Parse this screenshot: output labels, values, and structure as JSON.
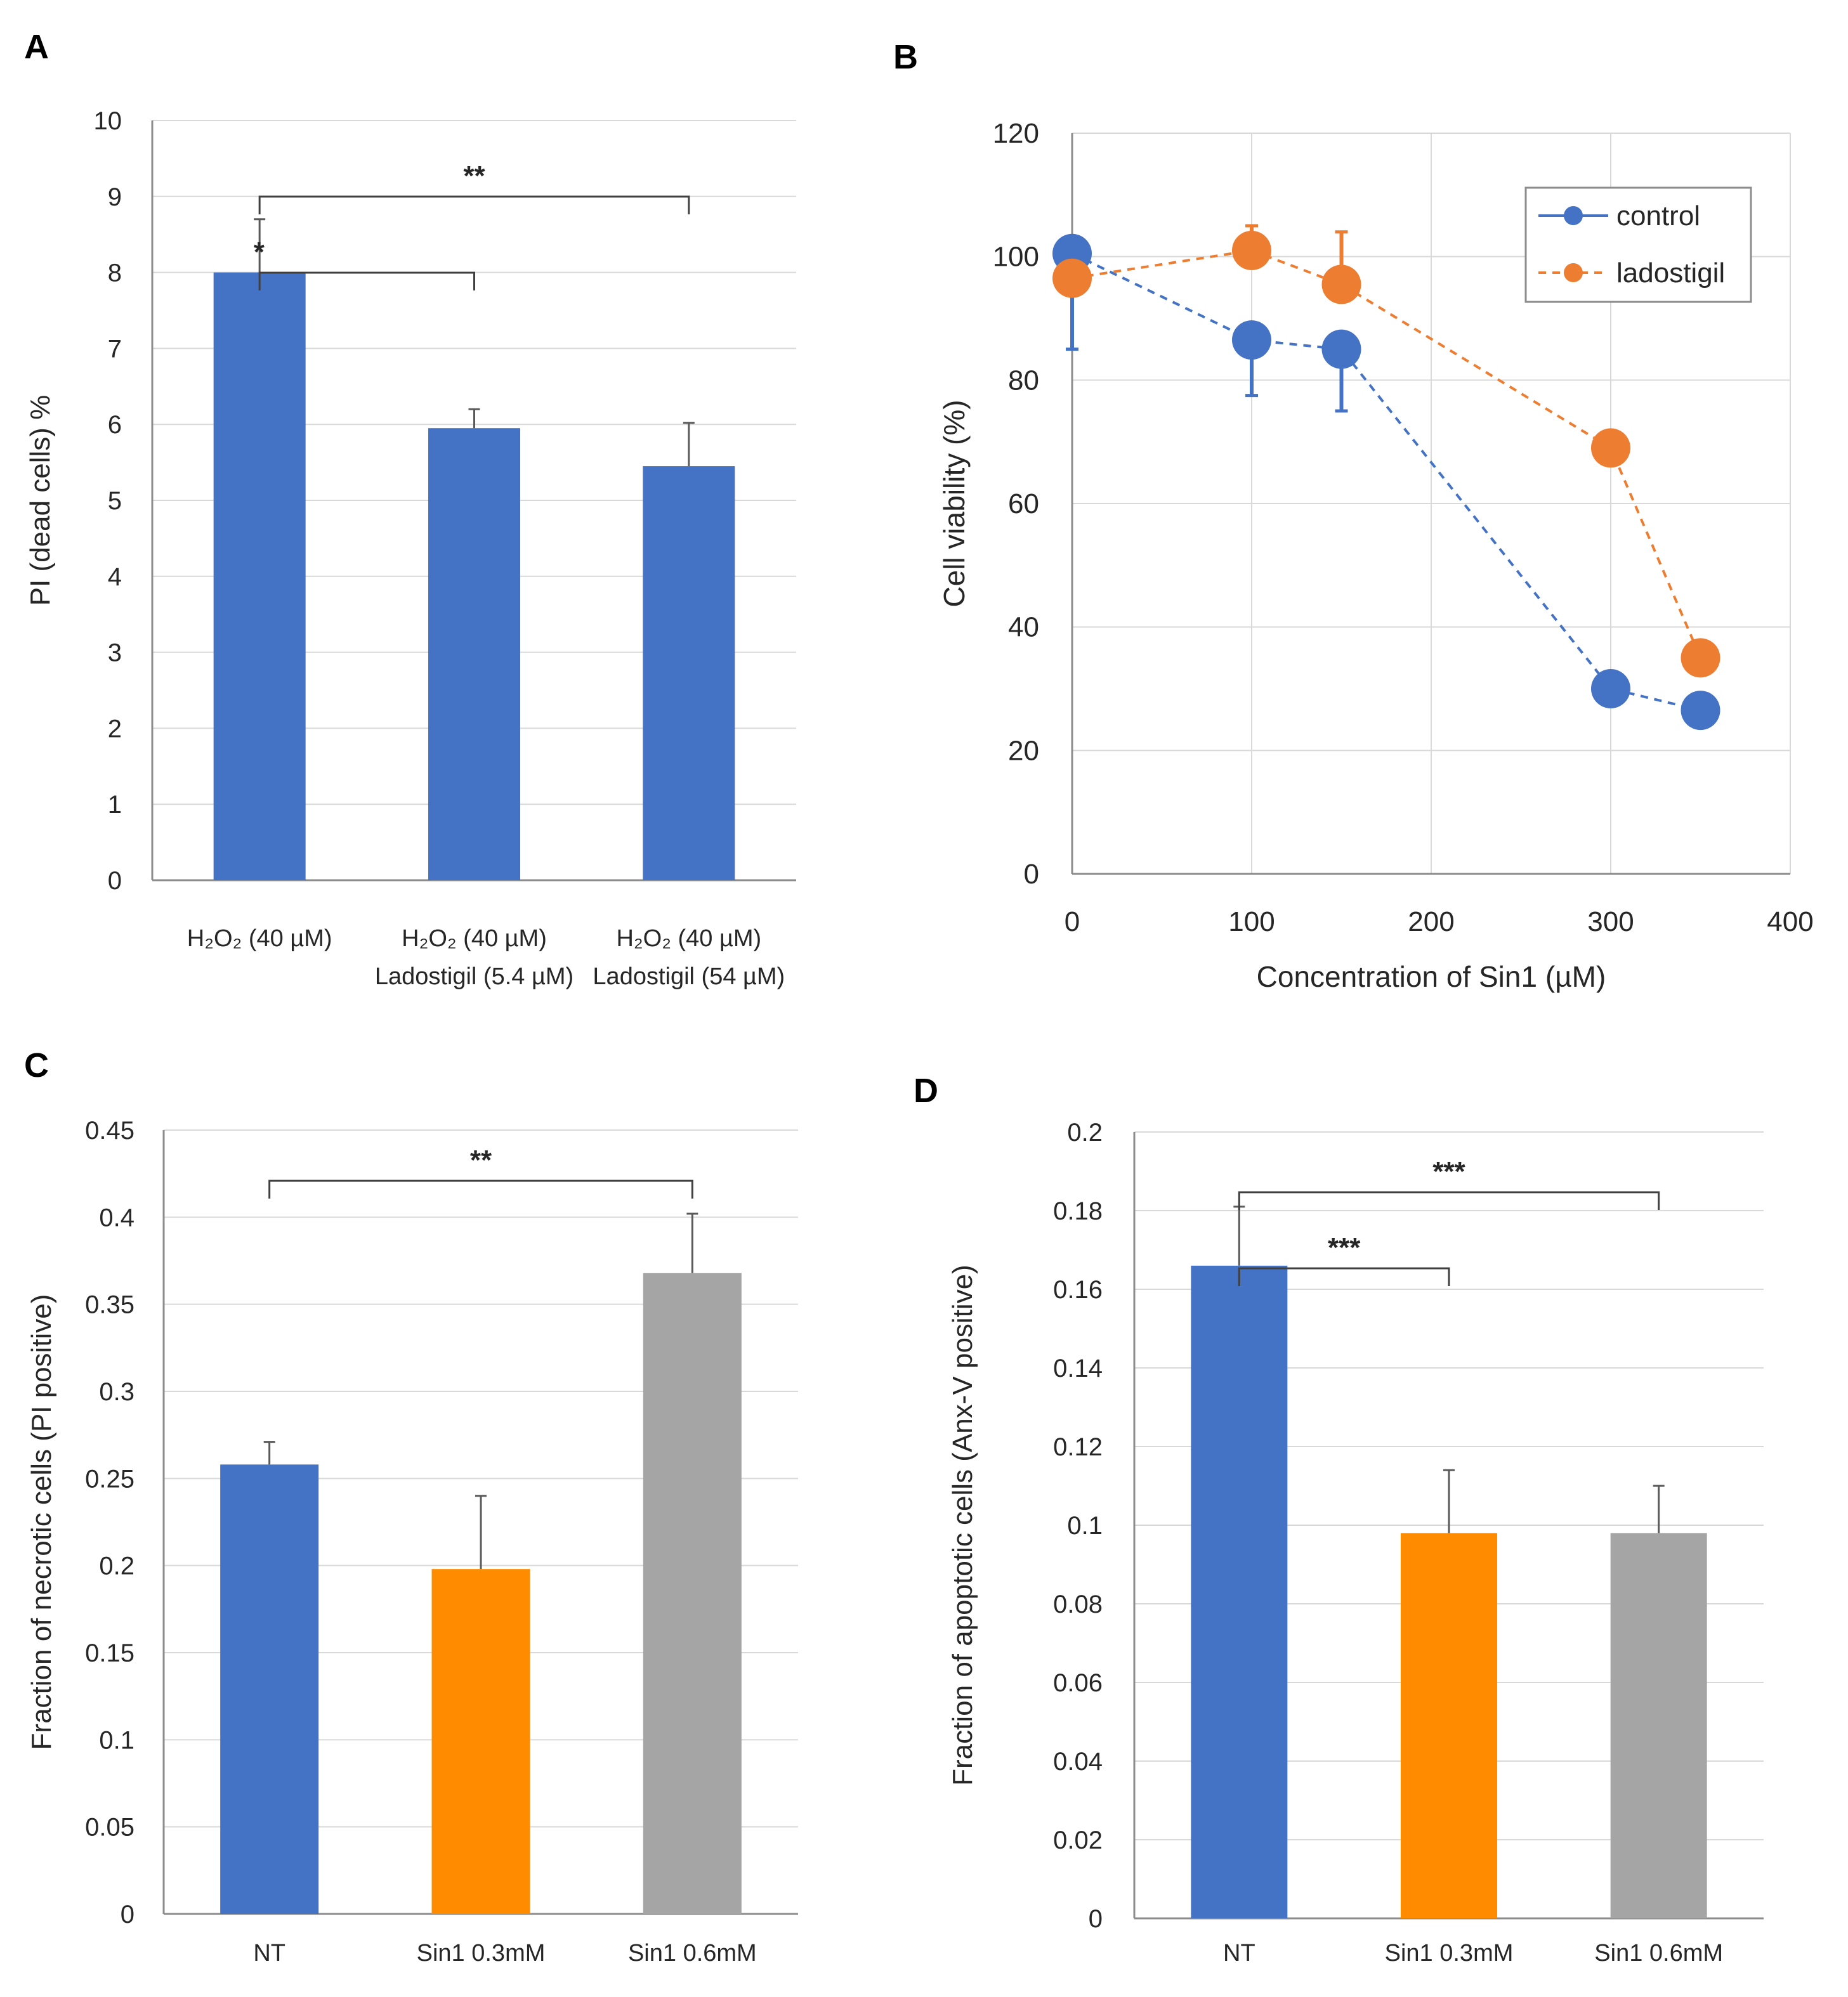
{
  "panels": {
    "A": {
      "letter": "A"
    },
    "B": {
      "letter": "B"
    },
    "C": {
      "letter": "C"
    },
    "D": {
      "letter": "D"
    }
  },
  "chart_data": [
    {
      "id": "A",
      "type": "bar",
      "title": "",
      "xlabel": "",
      "ylabel": "PI (dead cells) %",
      "ylim": [
        0,
        10
      ],
      "yticks": [
        "0",
        "1",
        "2",
        "3",
        "4",
        "5",
        "6",
        "7",
        "8",
        "9",
        "10"
      ],
      "categories": [
        {
          "line1": "H₂O₂ (40 µM)",
          "line2": ""
        },
        {
          "line1": "H₂O₂ (40 µM)",
          "line2": "Ladostigil (5.4 µM)"
        },
        {
          "line1": "H₂O₂ (40 µM)",
          "line2": "Ladostigil (54 µM)"
        }
      ],
      "values": [
        8.0,
        5.95,
        5.45
      ],
      "errors": [
        0.7,
        0.25,
        0.57
      ],
      "colors": [
        "#4472C4",
        "#4472C4",
        "#4472C4"
      ],
      "grid": true,
      "significance": [
        {
          "label": "*",
          "from": 0,
          "to": 1
        },
        {
          "label": "**",
          "from": 0,
          "to": 2
        }
      ]
    },
    {
      "id": "B",
      "type": "scatter",
      "title": "",
      "xlabel": "Concentration of Sin1 (µM)",
      "ylabel": "Cell viability (%)",
      "xlim": [
        0,
        400
      ],
      "ylim": [
        0,
        120
      ],
      "xticks": [
        "0",
        "100",
        "200",
        "300",
        "400"
      ],
      "yticks": [
        "0",
        "20",
        "40",
        "60",
        "80",
        "100",
        "120"
      ],
      "grid": true,
      "legend": "top-right",
      "series": [
        {
          "name": "control",
          "color": "#4472C4",
          "x": [
            0,
            100,
            150,
            300,
            350
          ],
          "y": [
            100.5,
            86.5,
            85.0,
            30.0,
            26.5
          ],
          "err_down": [
            15.5,
            9.0,
            10.0,
            0,
            0
          ],
          "err_up": [
            0,
            0,
            0,
            0,
            0
          ]
        },
        {
          "name": "ladostigil",
          "color": "#ED7D31",
          "x": [
            0,
            100,
            150,
            300,
            350
          ],
          "y": [
            96.5,
            101.0,
            95.5,
            69.0,
            35.0
          ],
          "err_down": [
            0,
            0,
            0,
            0,
            0
          ],
          "err_up": [
            0,
            4.0,
            8.5,
            0,
            0
          ]
        }
      ]
    },
    {
      "id": "C",
      "type": "bar",
      "title": "",
      "xlabel": "",
      "ylabel": "Fraction of necrotic cells (PI positive)",
      "ylim": [
        0,
        0.45
      ],
      "yticks": [
        "0",
        "0.05",
        "0.1",
        "0.15",
        "0.2",
        "0.25",
        "0.3",
        "0.35",
        "0.4",
        "0.45"
      ],
      "categories": [
        {
          "line1": "NT",
          "line2": ""
        },
        {
          "line1": "Sin1 0.3mM",
          "line2": ""
        },
        {
          "line1": "Sin1 0.6mM",
          "line2": ""
        }
      ],
      "values": [
        0.258,
        0.198,
        0.368
      ],
      "errors": [
        0.013,
        0.042,
        0.034
      ],
      "colors": [
        "#4472C4",
        "#FF8C00",
        "#A5A5A5"
      ],
      "grid": true,
      "significance": [
        {
          "label": "**",
          "from": 0,
          "to": 2
        }
      ]
    },
    {
      "id": "D",
      "type": "bar",
      "title": "",
      "xlabel": "",
      "ylabel": "Fraction of apoptotic cells (Anx-V positive)",
      "ylim": [
        0,
        0.2
      ],
      "yticks": [
        "0",
        "0.02",
        "0.04",
        "0.06",
        "0.08",
        "0.1",
        "0.12",
        "0.14",
        "0.16",
        "0.18",
        "0.2"
      ],
      "categories": [
        {
          "line1": "NT",
          "line2": ""
        },
        {
          "line1": "Sin1 0.3mM",
          "line2": ""
        },
        {
          "line1": "Sin1 0.6mM",
          "line2": ""
        }
      ],
      "values": [
        0.166,
        0.098,
        0.098
      ],
      "errors": [
        0.015,
        0.016,
        0.012
      ],
      "colors": [
        "#4472C4",
        "#FF8C00",
        "#A5A5A5"
      ],
      "grid": true,
      "significance": [
        {
          "label": "***",
          "from": 0,
          "to": 1
        },
        {
          "label": "***",
          "from": 0,
          "to": 2
        }
      ]
    }
  ]
}
